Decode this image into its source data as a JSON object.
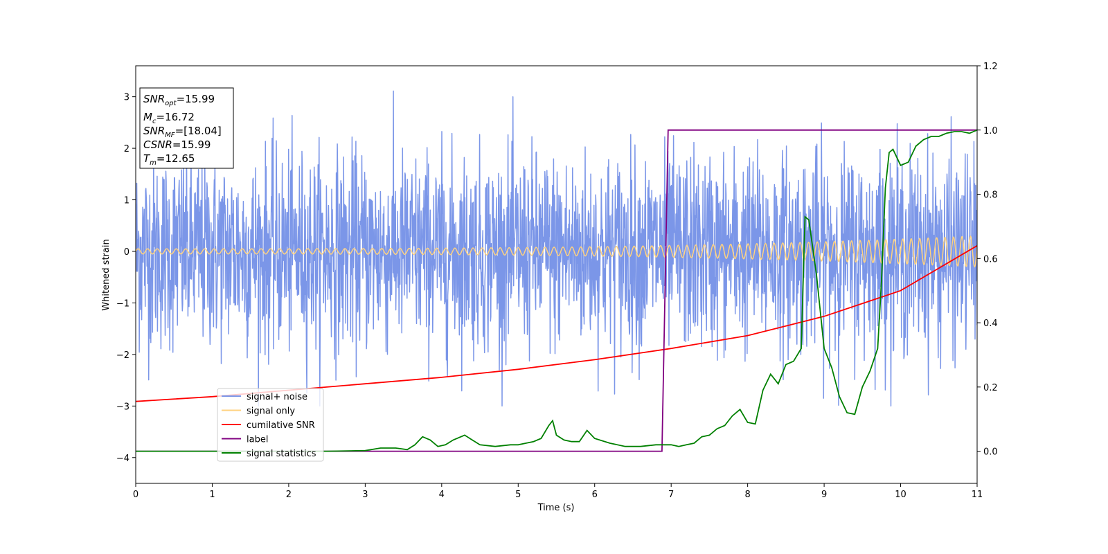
{
  "chart_data": {
    "type": "line",
    "xlabel": "Time (s)",
    "ylabel": "Whitened strain",
    "xlim": [
      0,
      11
    ],
    "ylim": [
      -4.5,
      3.6
    ],
    "y2lim": [
      -0.1,
      1.2
    ],
    "x_ticks": [
      "0",
      "1",
      "2",
      "3",
      "4",
      "5",
      "6",
      "7",
      "8",
      "9",
      "10",
      "11"
    ],
    "y_ticks": [
      "3",
      "2",
      "1",
      "0",
      "−1",
      "−2",
      "−3",
      "−4"
    ],
    "y2_ticks": [
      "1.2",
      "1.0",
      "0.8",
      "0.6",
      "0.4",
      "0.2",
      "0.0"
    ],
    "info_box": {
      "snr_opt": {
        "base": "SNR",
        "sub": "opt",
        "value": "=15.99"
      },
      "mc": {
        "base": "M",
        "sub": "c",
        "value": "=16.72"
      },
      "snr_mf": {
        "base": "SNR",
        "sub": "MF",
        "value": "=[18.04]"
      },
      "csnr": {
        "base": "CSNR",
        "value": "=15.99"
      },
      "tm": {
        "base": "T",
        "sub": "m",
        "value": "=12.65"
      }
    },
    "legend": {
      "placement": "lower-left",
      "entries": [
        {
          "label": "signal+ noise",
          "color": "#7b96e8"
        },
        {
          "label": "signal only",
          "color": "#ffd27f"
        },
        {
          "label": "cumilative SNR",
          "color": "#ff0000"
        },
        {
          "label": "label",
          "color": "#800080"
        },
        {
          "label": "signal statistics",
          "color": "#008000"
        }
      ]
    },
    "series": [
      {
        "name": "signal+ noise",
        "axis": "left",
        "color": "#7b96e8",
        "description": "whitened noise, amplitude roughly ±2.5 with peaks to 3.2",
        "noise_range": [
          -3.0,
          3.25
        ]
      },
      {
        "name": "signal only",
        "axis": "left",
        "color": "#ffd27f",
        "description": "chirp oscillation around 0, amplitude growing from 0.05 to 0.3"
      },
      {
        "name": "cumilative SNR",
        "axis": "right",
        "color": "#ff0000",
        "x": [
          0,
          1,
          2,
          3,
          4,
          5,
          6,
          7,
          8,
          9,
          10,
          11
        ],
        "y": [
          0.155,
          0.17,
          0.19,
          0.21,
          0.23,
          0.255,
          0.285,
          0.32,
          0.36,
          0.42,
          0.5,
          0.64
        ]
      },
      {
        "name": "label",
        "axis": "right",
        "color": "#800080",
        "x": [
          0,
          6.88,
          6.96,
          11
        ],
        "y": [
          0.0,
          0.0,
          1.0,
          1.0
        ]
      },
      {
        "name": "signal statistics",
        "axis": "right",
        "color": "#008000",
        "x": [
          0,
          0.5,
          1.0,
          1.5,
          2.0,
          2.5,
          3.0,
          3.2,
          3.4,
          3.55,
          3.65,
          3.75,
          3.85,
          3.95,
          4.05,
          4.15,
          4.3,
          4.4,
          4.5,
          4.7,
          4.9,
          5.0,
          5.1,
          5.2,
          5.3,
          5.4,
          5.45,
          5.5,
          5.6,
          5.7,
          5.8,
          5.9,
          6.0,
          6.2,
          6.4,
          6.6,
          6.8,
          6.9,
          7.0,
          7.1,
          7.2,
          7.3,
          7.4,
          7.5,
          7.6,
          7.7,
          7.8,
          7.9,
          8.0,
          8.1,
          8.2,
          8.3,
          8.4,
          8.5,
          8.6,
          8.7,
          8.75,
          8.8,
          8.9,
          9.0,
          9.1,
          9.2,
          9.3,
          9.4,
          9.5,
          9.6,
          9.7,
          9.75,
          9.8,
          9.85,
          9.9,
          10.0,
          10.1,
          10.2,
          10.3,
          10.4,
          10.5,
          10.6,
          10.7,
          10.8,
          10.9,
          11.0
        ],
        "y": [
          0.0,
          0.0,
          0.0,
          0.0,
          0.0,
          0.0,
          0.002,
          0.01,
          0.01,
          0.005,
          0.02,
          0.045,
          0.035,
          0.015,
          0.02,
          0.035,
          0.05,
          0.035,
          0.02,
          0.015,
          0.02,
          0.02,
          0.025,
          0.03,
          0.04,
          0.08,
          0.095,
          0.05,
          0.035,
          0.03,
          0.03,
          0.065,
          0.04,
          0.025,
          0.015,
          0.015,
          0.02,
          0.02,
          0.02,
          0.015,
          0.02,
          0.025,
          0.045,
          0.05,
          0.07,
          0.08,
          0.11,
          0.13,
          0.09,
          0.085,
          0.19,
          0.24,
          0.21,
          0.27,
          0.28,
          0.32,
          0.73,
          0.72,
          0.55,
          0.32,
          0.26,
          0.17,
          0.12,
          0.115,
          0.2,
          0.25,
          0.32,
          0.53,
          0.82,
          0.93,
          0.94,
          0.89,
          0.9,
          0.95,
          0.97,
          0.98,
          0.98,
          0.99,
          0.995,
          0.995,
          0.99,
          1.0
        ]
      }
    ]
  }
}
